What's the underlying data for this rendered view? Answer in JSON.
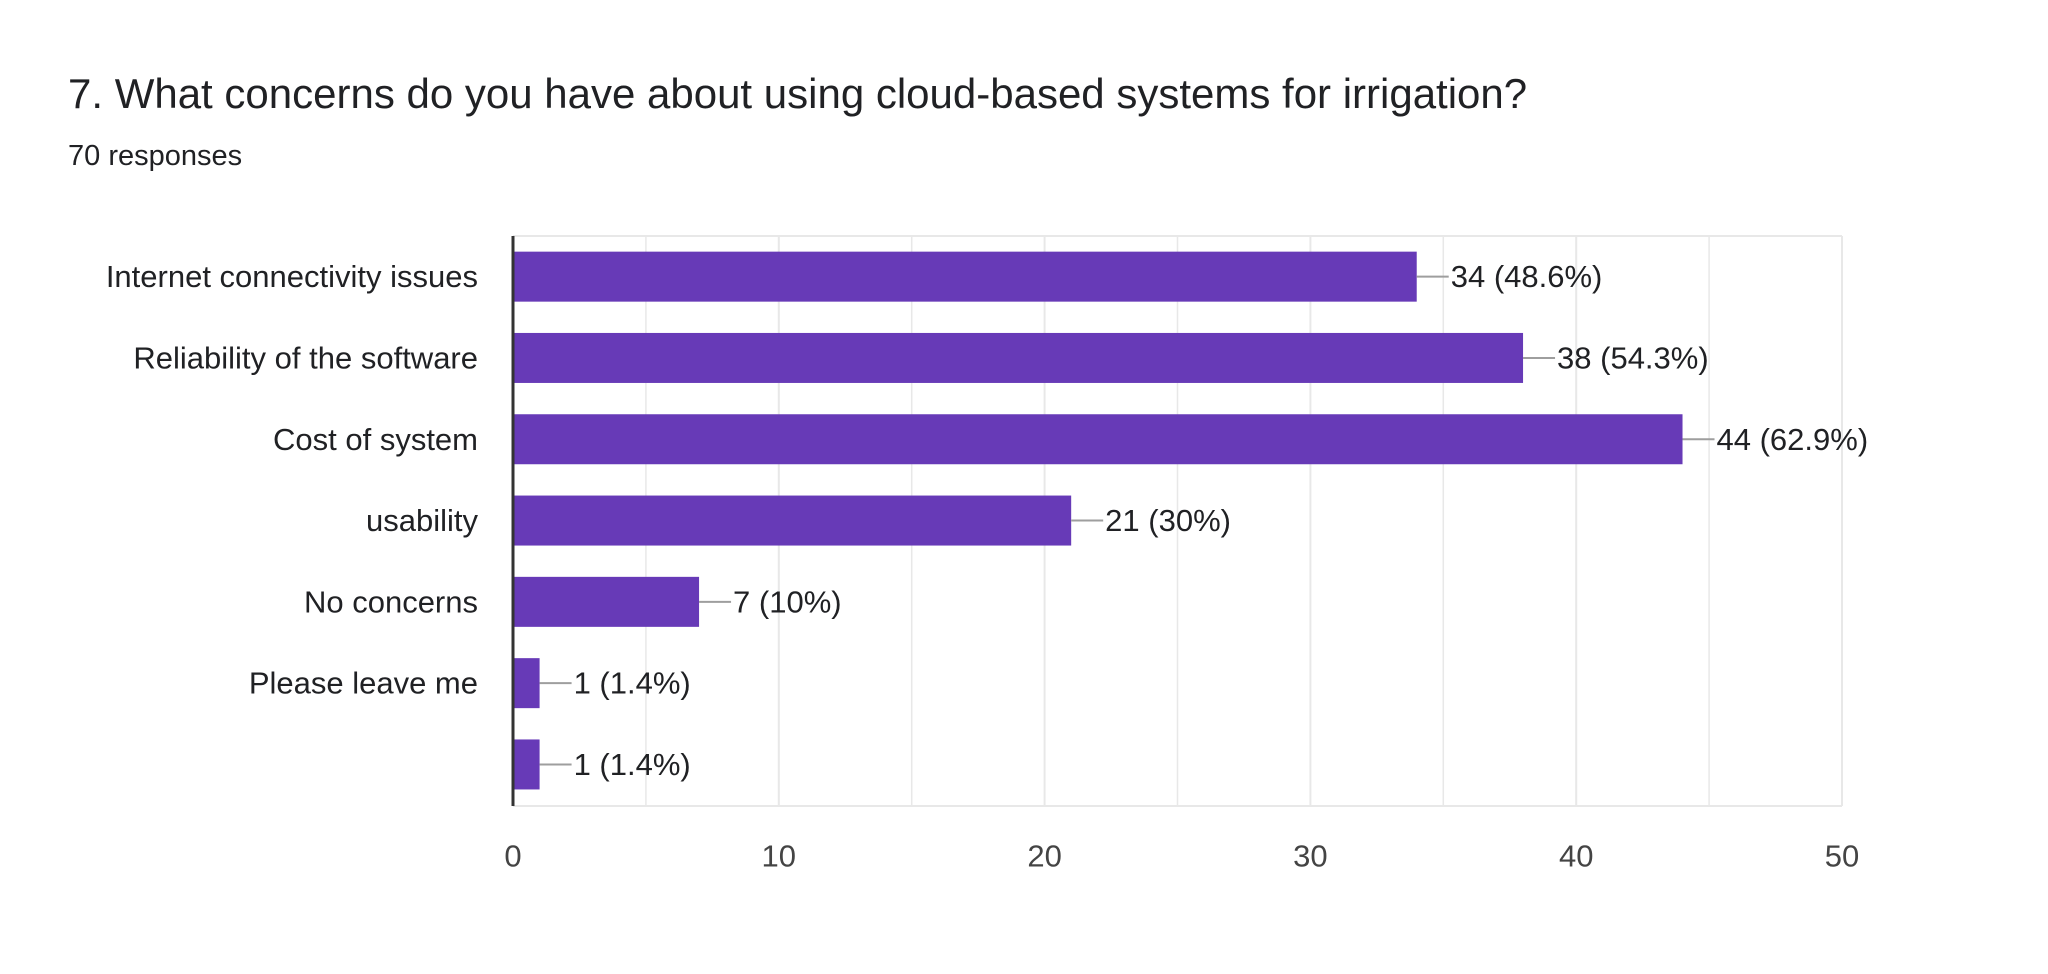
{
  "question": {
    "title": "7. What concerns do you have about using cloud-based systems for irrigation?",
    "responses": "70 responses"
  },
  "colors": {
    "bar": "#673ab7",
    "grid": "#e8e8e8",
    "axis": "#333333",
    "leader": "#9e9e9e"
  },
  "chart_data": {
    "type": "bar",
    "orientation": "horizontal",
    "categories": [
      "Internet connectivity issues",
      "Reliability of the software",
      "Cost of system",
      "usability",
      "No concerns",
      "Please leave me",
      ""
    ],
    "values": [
      34,
      38,
      44,
      21,
      7,
      1,
      1
    ],
    "data_labels": [
      "34 (48.6%)",
      "38 (54.3%)",
      "44 (62.9%)",
      "21 (30%)",
      "7 (10%)",
      "1 (1.4%)",
      "1 (1.4%)"
    ],
    "xlim": [
      0,
      50
    ],
    "xticks": [
      0,
      10,
      20,
      30,
      40,
      50
    ],
    "grid": true
  }
}
